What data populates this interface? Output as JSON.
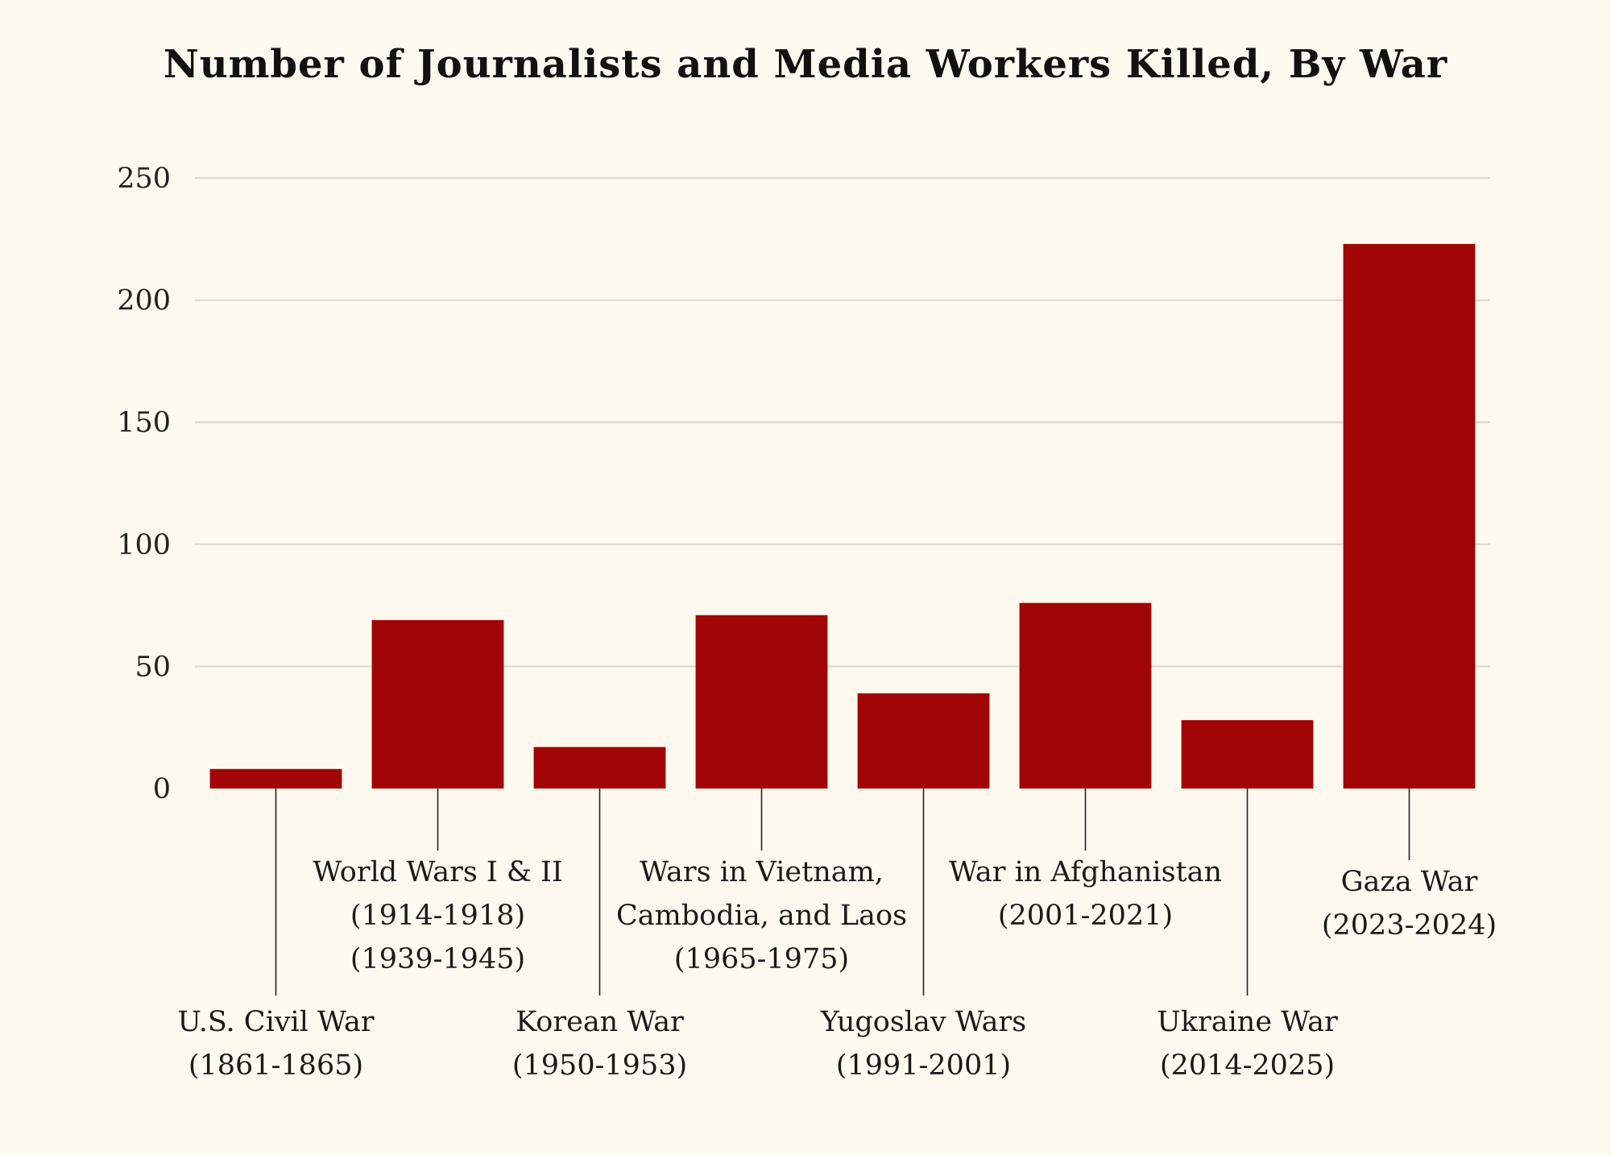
{
  "colors": {
    "background": "#fdf9ef",
    "bar": "#a10505",
    "grid": "#dcd8cc",
    "text": "#111111"
  },
  "chart_data": {
    "type": "bar",
    "title": "Number of Journalists and Media Workers Killed, By War",
    "xlabel": "",
    "ylabel": "",
    "ylim": [
      0,
      250
    ],
    "yticks": [
      0,
      50,
      100,
      150,
      200,
      250
    ],
    "grid": true,
    "legend": "none",
    "categories": [
      {
        "lines": [
          "U.S. Civil War",
          "(1861-1865)"
        ],
        "placement": "low"
      },
      {
        "lines": [
          "World Wars I & II",
          "(1914-1918)",
          "(1939-1945)"
        ],
        "placement": "high"
      },
      {
        "lines": [
          "Korean War",
          "(1950-1953)"
        ],
        "placement": "low"
      },
      {
        "lines": [
          "Wars in Vietnam,",
          "Cambodia, and Laos",
          "(1965-1975)"
        ],
        "placement": "high"
      },
      {
        "lines": [
          "Yugoslav Wars",
          "(1991-2001)"
        ],
        "placement": "low"
      },
      {
        "lines": [
          "War in Afghanistan",
          "(2001-2021)"
        ],
        "placement": "high"
      },
      {
        "lines": [
          "Ukraine War",
          "(2014-2025)"
        ],
        "placement": "low"
      },
      {
        "lines": [
          "Gaza War",
          "(2023-2024)"
        ],
        "placement": "high"
      }
    ],
    "values": [
      8,
      69,
      17,
      71,
      39,
      76,
      28,
      223
    ]
  }
}
